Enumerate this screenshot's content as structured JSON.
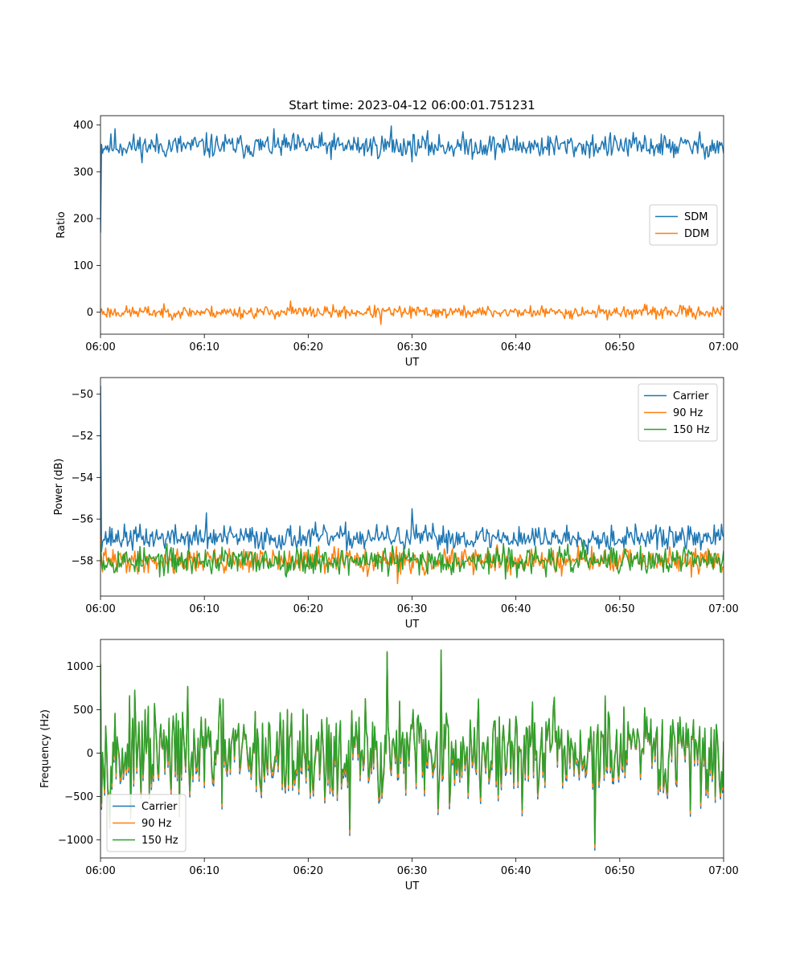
{
  "figure": {
    "title": "Start time: 2023-04-12 06:00:01.751231"
  },
  "chart_data": [
    {
      "type": "line",
      "xlabel": "UT",
      "ylabel": "Ratio",
      "xlim": [
        0,
        60
      ],
      "ylim": [
        -47,
        420
      ],
      "xticks": [
        0,
        10,
        20,
        30,
        40,
        50,
        60
      ],
      "xtick_labels": [
        "06:00",
        "06:10",
        "06:20",
        "06:30",
        "06:40",
        "06:50",
        "07:00"
      ],
      "yticks": [
        0,
        100,
        200,
        300,
        400
      ],
      "ytick_labels": [
        "0",
        "100",
        "200",
        "300",
        "400"
      ],
      "legend": "center-right",
      "series": [
        {
          "name": "SDM",
          "color": "#1f77b4",
          "start": 170,
          "base": 355,
          "amp": 20,
          "seed": 11,
          "spikes": [
            [
              28.0,
              398
            ],
            [
              1.4,
              392
            ]
          ]
        },
        {
          "name": "DDM",
          "color": "#ff7f0e",
          "start": 2,
          "base": 0,
          "amp": 10,
          "seed": 23,
          "spikes": [
            [
              27.0,
              -26
            ],
            [
              18.3,
              24
            ]
          ]
        }
      ]
    },
    {
      "type": "line",
      "xlabel": "UT",
      "ylabel": "Power (dB)",
      "xlim": [
        0,
        60
      ],
      "ylim": [
        -59.7,
        -49.2
      ],
      "xticks": [
        0,
        10,
        20,
        30,
        40,
        50,
        60
      ],
      "xtick_labels": [
        "06:00",
        "06:10",
        "06:20",
        "06:30",
        "06:40",
        "06:50",
        "07:00"
      ],
      "yticks": [
        -58,
        -56,
        -54,
        -52,
        -50
      ],
      "ytick_labels": [
        "−58",
        "−56",
        "−54",
        "−52",
        "−50"
      ],
      "legend": "top-right",
      "series": [
        {
          "name": "Carrier",
          "color": "#1f77b4",
          "start": -49.6,
          "base": -56.9,
          "amp": 0.45,
          "seed": 37,
          "spikes": [
            [
              10.2,
              -55.7
            ],
            [
              30.0,
              -55.5
            ]
          ]
        },
        {
          "name": "90 Hz",
          "color": "#ff7f0e",
          "start": -56.8,
          "base": -58.0,
          "amp": 0.45,
          "seed": 41,
          "spikes": [
            [
              28.6,
              -59.1
            ]
          ]
        },
        {
          "name": "150 Hz",
          "color": "#2ca02c",
          "start": -57.2,
          "base": -58.0,
          "amp": 0.5,
          "seed": 53,
          "spikes": [
            [
              46.5,
              -57.0
            ]
          ]
        }
      ]
    },
    {
      "type": "line",
      "xlabel": "UT",
      "ylabel": "Frequency (Hz)",
      "xlim": [
        0,
        60
      ],
      "ylim": [
        -1210,
        1310
      ],
      "xticks": [
        0,
        10,
        20,
        30,
        40,
        50,
        60
      ],
      "xtick_labels": [
        "06:00",
        "06:10",
        "06:20",
        "06:30",
        "06:40",
        "06:50",
        "07:00"
      ],
      "yticks": [
        -1000,
        -500,
        0,
        500,
        1000
      ],
      "ytick_labels": [
        "−1000",
        "−500",
        "0",
        "500",
        "1000"
      ],
      "legend": "bottom-left",
      "series": [
        {
          "name": "Carrier",
          "color": "#1f77b4",
          "offset": -70
        },
        {
          "name": "90 Hz",
          "color": "#ff7f0e",
          "offset": -40
        },
        {
          "name": "150 Hz",
          "color": "#2ca02c",
          "offset": 0
        }
      ],
      "shared_signal": {
        "start": 1030,
        "base": 0,
        "amp": 420,
        "seed": 97,
        "spikes": [
          [
            32.8,
            1190
          ],
          [
            47.6,
            -1050
          ],
          [
            24.0,
            -880
          ],
          [
            27.6,
            1170
          ]
        ]
      }
    }
  ]
}
